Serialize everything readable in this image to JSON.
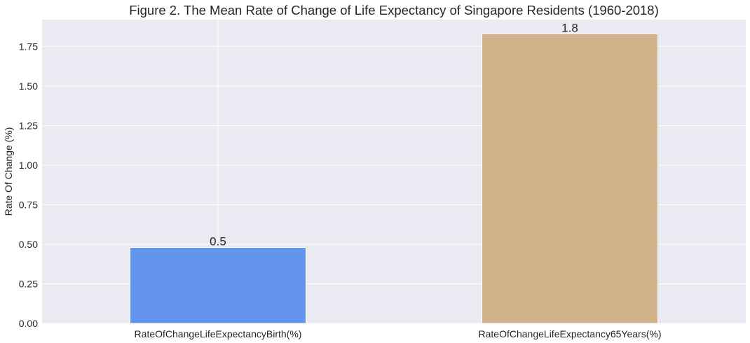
{
  "chart_data": {
    "type": "bar",
    "title": "Figure 2. The Mean Rate of Change of Life Expectancy of Singapore Residents (1960-2018)",
    "xlabel": "",
    "ylabel": "Rate Of Change (%)",
    "categories": [
      "RateOfChangeLifeExpectancyBirth(%)",
      "RateOfChangeLifeExpectancy65Years(%)"
    ],
    "values": [
      0.48,
      1.83
    ],
    "data_labels": [
      "0.5",
      "1.8"
    ],
    "colors": [
      "#6495ED",
      "#D2B48C"
    ],
    "ylim": [
      0,
      1.92
    ],
    "yticks": [
      0,
      0.25,
      0.5,
      0.75,
      1.0,
      1.25,
      1.5,
      1.75
    ],
    "ytick_labels": [
      "0.00",
      "0.25",
      "0.50",
      "0.75",
      "1.00",
      "1.25",
      "1.50",
      "1.75"
    ],
    "grid": true,
    "background": "#EAEAF2",
    "legend": "none"
  }
}
